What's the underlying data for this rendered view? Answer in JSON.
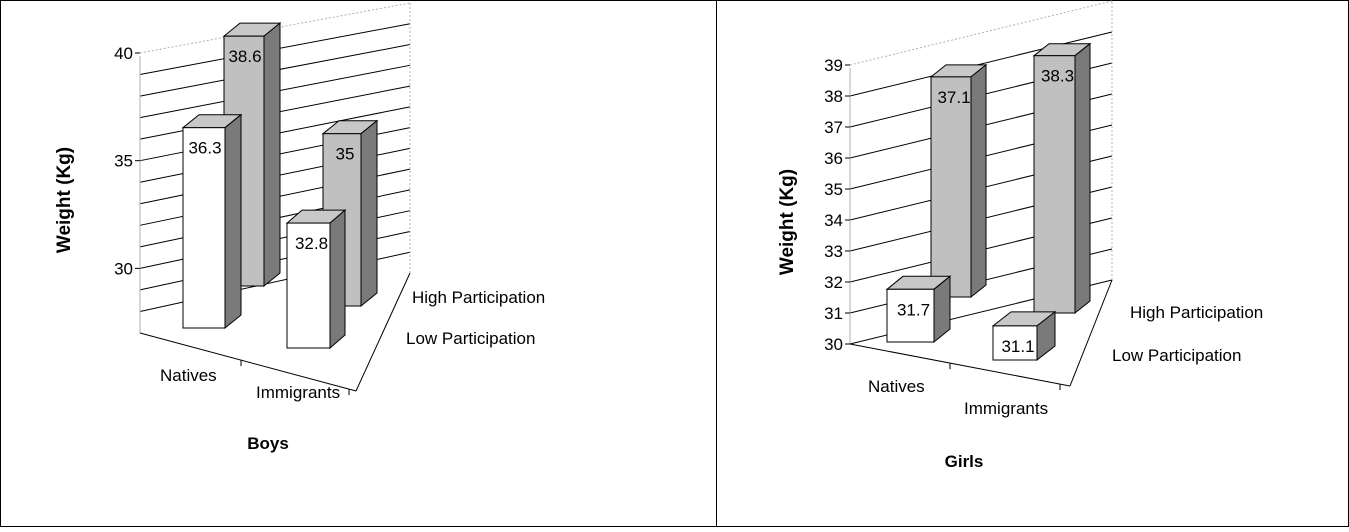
{
  "chart_data": [
    {
      "type": "bar",
      "xlabel": "Boys",
      "ylabel": "Weight (Kg)",
      "categories": [
        "Natives",
        "Immigrants"
      ],
      "depth_categories": [
        "Low Participation",
        "High Participation"
      ],
      "series": [
        {
          "name": "Low Participation",
          "values": [
            36.3,
            32.8
          ],
          "labels": [
            "36.3",
            "32.8"
          ]
        },
        {
          "name": "High Participation",
          "values": [
            38.6,
            35
          ],
          "labels": [
            "38.6",
            "35"
          ]
        }
      ],
      "ylim": [
        27,
        40
      ],
      "yticks": [
        30,
        35,
        40
      ],
      "ygrid_values": [
        28,
        29,
        30,
        31,
        32,
        33,
        34,
        35,
        36,
        37,
        38,
        39,
        40
      ],
      "colors": {
        "Low Participation": "#ffffff",
        "High Participation": "#c0c0c0"
      },
      "grid": true
    },
    {
      "type": "bar",
      "xlabel": "Girls",
      "ylabel": "Weight (Kg)",
      "categories": [
        "Natives",
        "Immigrants"
      ],
      "depth_categories": [
        "Low Participation",
        "High Participation"
      ],
      "series": [
        {
          "name": "Low Participation",
          "values": [
            31.7,
            31.1
          ],
          "labels": [
            "31.7",
            "31.1"
          ]
        },
        {
          "name": "High Participation",
          "values": [
            37.1,
            38.3
          ],
          "labels": [
            "37.1",
            "38.3"
          ]
        }
      ],
      "ylim": [
        30,
        39
      ],
      "yticks": [
        30,
        31,
        32,
        33,
        34,
        35,
        36,
        37,
        38,
        39
      ],
      "ygrid_values": [
        30,
        31,
        32,
        33,
        34,
        35,
        36,
        37,
        38,
        39
      ],
      "colors": {
        "Low Participation": "#ffffff",
        "High Participation": "#c0c0c0"
      },
      "grid": true
    }
  ]
}
